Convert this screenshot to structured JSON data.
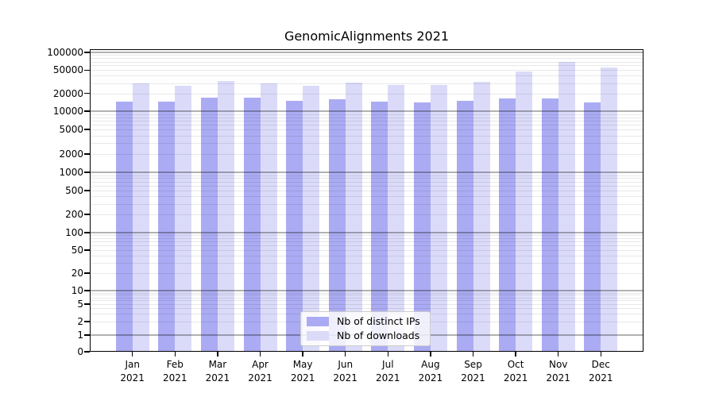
{
  "title": "GenomicAlignments 2021",
  "chart_data": {
    "type": "bar",
    "title": "GenomicAlignments 2021",
    "categories": [
      "Jan 2021",
      "Feb 2021",
      "Mar 2021",
      "Apr 2021",
      "May 2021",
      "Jun 2021",
      "Jul 2021",
      "Aug 2021",
      "Sep 2021",
      "Oct 2021",
      "Nov 2021",
      "Dec 2021"
    ],
    "series": [
      {
        "name": "Nb of distinct IPs",
        "color": "#ababf3",
        "values": [
          14500,
          14500,
          17000,
          16800,
          15000,
          15800,
          14500,
          14000,
          15000,
          16300,
          16500,
          14000
        ]
      },
      {
        "name": "Nb of downloads",
        "color": "#dbdbf9",
        "values": [
          29500,
          27500,
          33000,
          30000,
          27000,
          30500,
          28000,
          28000,
          32000,
          47000,
          69000,
          56000
        ]
      }
    ],
    "xlabel": "",
    "ylabel": "",
    "yscale": "log-with-zero",
    "ylim": [
      0,
      100000
    ],
    "yticks": [
      100000,
      50000,
      20000,
      10000,
      5000,
      2000,
      1000,
      500,
      200,
      100,
      50,
      20,
      10,
      5,
      2,
      1,
      0
    ],
    "grid": true,
    "legend_position": "lower center"
  },
  "colors": {
    "background": "#ffffff",
    "axis": "#000000",
    "grid_major": "rgba(0,0,0,0.30)",
    "grid_minor": "rgba(0,0,0,0.09)"
  }
}
